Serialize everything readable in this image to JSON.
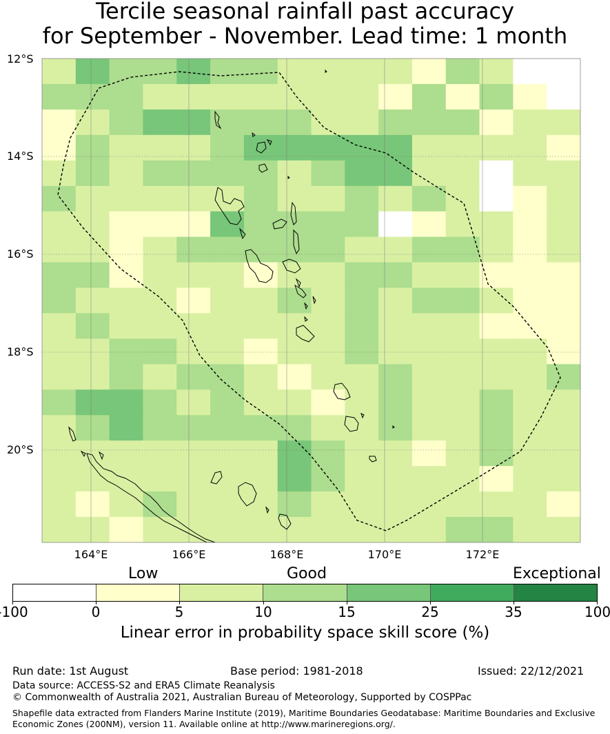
{
  "title": {
    "line1": "Tercile seasonal rainfall past accuracy",
    "line2": "for September - November. Lead time: 1 month"
  },
  "axes": {
    "lat_labels": [
      "12°S",
      "14°S",
      "16°S",
      "18°S",
      "20°S"
    ],
    "lon_labels": [
      "164°E",
      "166°E",
      "168°E",
      "170°E",
      "172°E"
    ]
  },
  "categories": {
    "low": "Low",
    "good": "Good",
    "exceptional": "Exceptional"
  },
  "colorbar": {
    "colors": [
      "#ffffff",
      "#ffffcc",
      "#d9f0a3",
      "#addd8e",
      "#78c679",
      "#41ab5d",
      "#238443"
    ],
    "ticks": [
      "-100",
      "0",
      "5",
      "10",
      "15",
      "25",
      "35",
      "100"
    ],
    "label": "Linear error in probability space skill score (%)"
  },
  "footer": {
    "run_date": "Run date: 1st August",
    "base_period": "Base period: 1981-2018",
    "issued": "Issued: 22/12/2021",
    "data_source": "Data source: ACCESS-S2 and ERA5 Climate Reanalysis",
    "copyright": "© Commonwealth of Australia 2021, Australian Bureau of Meteorology, Supported by COSPPac",
    "shapefile": "Shapefile data extracted from Flanders Marine Institute (2019), Maritime Boundaries Geodatabase: Maritime Boundaries and Exclusive Economic Zones (200NM), version 11. Available online at http://www.marineregions.org/."
  },
  "grid": {
    "description_rows_top_to_bottom": "class index per cell, 0=white(-100..0),1=0..5,2=5..10,3=10..15,4=15..25",
    "rows": [
      [
        2,
        4,
        3,
        3,
        4,
        3,
        3,
        2,
        2,
        2,
        2,
        1,
        3,
        2,
        0,
        0
      ],
      [
        3,
        3,
        3,
        2,
        2,
        2,
        2,
        2,
        2,
        2,
        1,
        3,
        1,
        3,
        1,
        0
      ],
      [
        1,
        2,
        3,
        4,
        4,
        3,
        3,
        3,
        2,
        2,
        3,
        3,
        3,
        1,
        2,
        2
      ],
      [
        1,
        3,
        2,
        2,
        2,
        3,
        4,
        4,
        4,
        4,
        4,
        2,
        2,
        2,
        2,
        1
      ],
      [
        2,
        3,
        2,
        3,
        3,
        3,
        3,
        2,
        3,
        4,
        4,
        2,
        2,
        0,
        2,
        2
      ],
      [
        3,
        2,
        2,
        2,
        2,
        2,
        3,
        2,
        2,
        3,
        2,
        3,
        2,
        0,
        1,
        2
      ],
      [
        2,
        2,
        1,
        1,
        1,
        4,
        3,
        3,
        3,
        3,
        0,
        1,
        2,
        2,
        1,
        2
      ],
      [
        2,
        2,
        1,
        2,
        3,
        3,
        3,
        3,
        3,
        2,
        2,
        3,
        3,
        2,
        1,
        2
      ],
      [
        3,
        3,
        1,
        2,
        2,
        2,
        1,
        2,
        2,
        3,
        3,
        2,
        2,
        1,
        1,
        1
      ],
      [
        3,
        2,
        2,
        2,
        1,
        2,
        2,
        3,
        2,
        3,
        2,
        3,
        3,
        2,
        1,
        1
      ],
      [
        2,
        3,
        2,
        2,
        2,
        2,
        2,
        2,
        2,
        3,
        2,
        2,
        2,
        1,
        1,
        1
      ],
      [
        2,
        2,
        3,
        3,
        2,
        2,
        1,
        2,
        2,
        3,
        2,
        2,
        2,
        2,
        2,
        1
      ],
      [
        2,
        2,
        3,
        2,
        3,
        3,
        2,
        1,
        2,
        2,
        3,
        2,
        2,
        2,
        2,
        3
      ],
      [
        3,
        4,
        4,
        3,
        2,
        3,
        2,
        2,
        1,
        2,
        3,
        2,
        2,
        3,
        2,
        2
      ],
      [
        2,
        3,
        4,
        3,
        3,
        3,
        3,
        3,
        2,
        2,
        3,
        2,
        2,
        3,
        2,
        2
      ],
      [
        2,
        2,
        2,
        2,
        2,
        2,
        2,
        4,
        3,
        2,
        2,
        1,
        2,
        3,
        2,
        2
      ],
      [
        2,
        2,
        2,
        2,
        2,
        2,
        2,
        4,
        3,
        2,
        2,
        2,
        2,
        1,
        2,
        2
      ],
      [
        2,
        1,
        2,
        3,
        2,
        2,
        2,
        3,
        2,
        2,
        2,
        2,
        2,
        2,
        2,
        1
      ],
      [
        2,
        2,
        1,
        2,
        2,
        2,
        2,
        2,
        2,
        2,
        2,
        2,
        3,
        3,
        2,
        2
      ]
    ]
  }
}
